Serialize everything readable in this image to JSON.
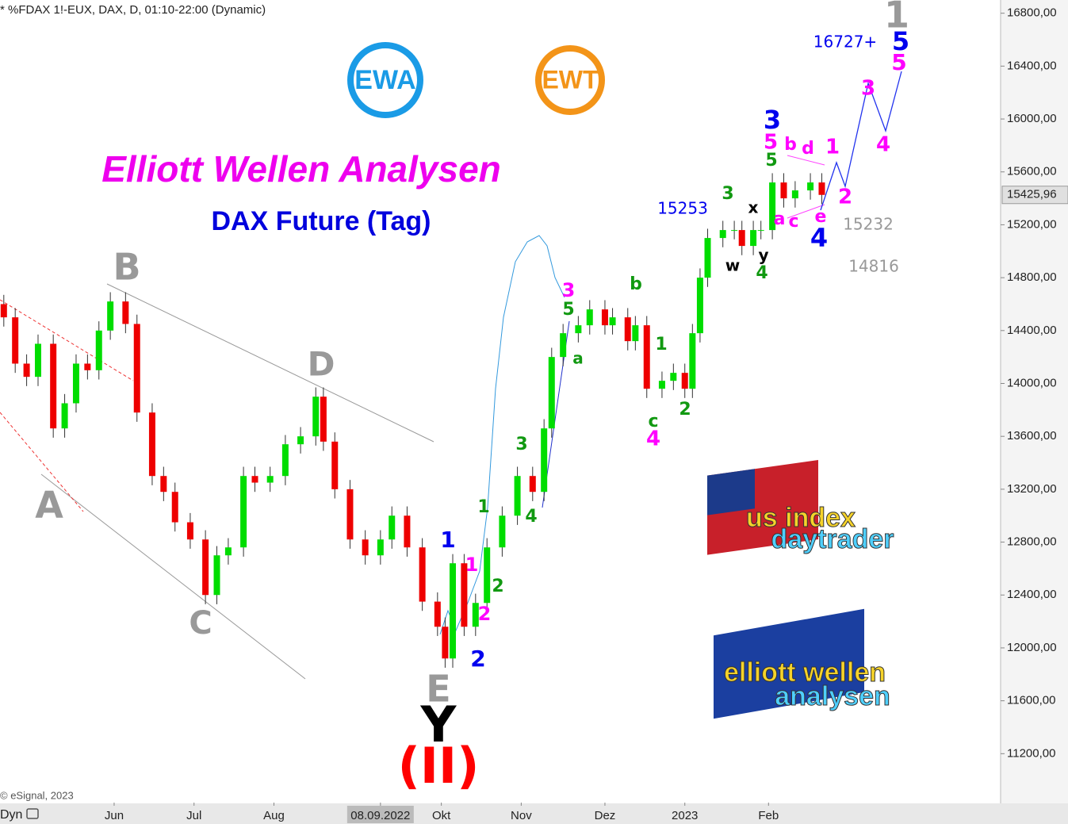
{
  "chart_data": {
    "type": "candlestick",
    "header": "* %FDAX 1!-EUX, DAX, D, 01:10-22:00 (Dynamic)",
    "title": "Elliott Wellen Analysen",
    "subtitle": "DAX Future (Tag)",
    "copyright": "© eSignal, 2023",
    "x_axis_mode": "Dyn",
    "logos": [
      "EWA",
      "EWT"
    ],
    "brand_us": [
      "us index",
      "daytrader"
    ],
    "brand_ewa": [
      "elliott wellen",
      "analysen"
    ],
    "xlim": [
      0,
      263
    ],
    "ylim": [
      10830,
      16900
    ],
    "xticks": [
      {
        "value": 30,
        "label": "Jun"
      },
      {
        "value": 51,
        "label": "Jul"
      },
      {
        "value": 72,
        "label": "Aug"
      },
      {
        "value": 100,
        "label": "08.09.2022"
      },
      {
        "value": 116,
        "label": "Okt"
      },
      {
        "value": 137,
        "label": "Nov"
      },
      {
        "value": 159,
        "label": "Dez"
      },
      {
        "value": 180,
        "label": "2023"
      },
      {
        "value": 202,
        "label": "Feb"
      }
    ],
    "yticks": [
      {
        "value": 11200,
        "label": "11200,00"
      },
      {
        "value": 11600,
        "label": "11600,00"
      },
      {
        "value": 12000,
        "label": "12000,00"
      },
      {
        "value": 12400,
        "label": "12400,00"
      },
      {
        "value": 12800,
        "label": "12800,00"
      },
      {
        "value": 13200,
        "label": "13200,00"
      },
      {
        "value": 13600,
        "label": "13600,00"
      },
      {
        "value": 14000,
        "label": "14000,00"
      },
      {
        "value": 14400,
        "label": "14400,00"
      },
      {
        "value": 14800,
        "label": "14800,00"
      },
      {
        "value": 15200,
        "label": "15200,00"
      },
      {
        "value": 15600,
        "label": "15600,00"
      },
      {
        "value": 16000,
        "label": "16000,00"
      },
      {
        "value": 16400,
        "label": "16400,00"
      },
      {
        "value": 16800,
        "label": "16800,00"
      }
    ],
    "last_price": {
      "value": 15425.96,
      "label": "15425,96"
    },
    "up_color": "#00dd00",
    "down_color": "#ee0000",
    "x": [
      1,
      4,
      7,
      10,
      14,
      17,
      20,
      23,
      26,
      29,
      33,
      36,
      40,
      43,
      46,
      50,
      54,
      57,
      60,
      64,
      67,
      71,
      75,
      79,
      83,
      85,
      88,
      92,
      96,
      100,
      103,
      107,
      111,
      115,
      117,
      119,
      122,
      125,
      128,
      132,
      136,
      140,
      143,
      145,
      148,
      152,
      155,
      159,
      161,
      165,
      167,
      170,
      174,
      177,
      180,
      182,
      184,
      186,
      190,
      193,
      195,
      198,
      200,
      203,
      206,
      209,
      213,
      216
    ],
    "open": [
      14600,
      14500,
      14150,
      14050,
      14300,
      13660,
      13850,
      14150,
      14100,
      14400,
      14620,
      14450,
      13780,
      13300,
      13180,
      12950,
      12820,
      12400,
      12700,
      12760,
      13300,
      13250,
      13300,
      13540,
      13600,
      13900,
      13560,
      13200,
      12820,
      12700,
      12820,
      13000,
      12760,
      12350,
      12160,
      11920,
      12640,
      12160,
      12340,
      12760,
      13000,
      13300,
      13180,
      13660,
      14200,
      14380,
      14440,
      14560,
      14440,
      14500,
      14320,
      14440,
      13960,
      14020,
      14080,
      13960,
      14380,
      14800,
      15100,
      15160,
      15160,
      15040,
      15160,
      15160,
      15520,
      15400,
      15460,
      15520
    ],
    "high": [
      14670,
      14570,
      14220,
      14370,
      14370,
      13920,
      14220,
      14220,
      14470,
      14690,
      14690,
      14520,
      13850,
      13370,
      13250,
      13020,
      12890,
      12770,
      12830,
      13370,
      13370,
      13370,
      13610,
      13670,
      13970,
      13970,
      13630,
      13270,
      12890,
      12890,
      13070,
      13070,
      12830,
      12420,
      12230,
      12710,
      12710,
      12410,
      12830,
      13070,
      13370,
      13370,
      13730,
      14270,
      14450,
      14510,
      14630,
      14630,
      14570,
      14570,
      14510,
      14510,
      14090,
      14150,
      14150,
      14450,
      14870,
      15170,
      15230,
      15230,
      15230,
      15230,
      15230,
      15590,
      15590,
      15530,
      15590,
      15590
    ],
    "low": [
      14430,
      14080,
      13980,
      13980,
      13590,
      13590,
      13780,
      14030,
      14030,
      14330,
      14380,
      13710,
      13230,
      13110,
      12880,
      12750,
      12330,
      12330,
      12630,
      12690,
      13180,
      13180,
      13230,
      13470,
      13530,
      13490,
      13130,
      12750,
      12630,
      12630,
      12750,
      12690,
      12280,
      12090,
      11850,
      11850,
      12090,
      12090,
      12270,
      12690,
      12930,
      13110,
      13110,
      13590,
      14130,
      14310,
      14370,
      14370,
      14370,
      14250,
      14250,
      13890,
      13890,
      13950,
      13890,
      13890,
      14310,
      14730,
      15030,
      15090,
      14970,
      14970,
      15090,
      15090,
      15330,
      15330,
      15390,
      15356
    ],
    "close": [
      14500,
      14150,
      14050,
      14300,
      13660,
      13850,
      14150,
      14100,
      14400,
      14620,
      14450,
      13780,
      13300,
      13180,
      12950,
      12820,
      12400,
      12700,
      12760,
      13300,
      13250,
      13300,
      13540,
      13600,
      13900,
      13560,
      13200,
      12820,
      12700,
      12820,
      13000,
      12760,
      12350,
      12160,
      11920,
      12640,
      12160,
      12340,
      12760,
      13000,
      13300,
      13180,
      13660,
      14200,
      14380,
      14440,
      14560,
      14440,
      14500,
      14320,
      14440,
      13960,
      14020,
      14080,
      13960,
      14380,
      14800,
      15100,
      15160,
      15160,
      15040,
      15160,
      15160,
      15520,
      15400,
      15460,
      15520,
      15426
    ],
    "annotations": [
      {
        "text": "A",
        "color": "#999999"
      },
      {
        "text": "B",
        "color": "#999999"
      },
      {
        "text": "C",
        "color": "#999999"
      },
      {
        "text": "D",
        "color": "#999999"
      },
      {
        "text": "E",
        "color": "#999999"
      },
      {
        "text": "Y",
        "color": "#000000"
      },
      {
        "text": "(II)",
        "color": "#ff0000"
      },
      {
        "text": "1",
        "color": "#0000ee"
      },
      {
        "text": "1",
        "color": "#ff00ff"
      },
      {
        "text": "1",
        "color": "#119911"
      },
      {
        "text": "2",
        "color": "#119911"
      },
      {
        "text": "2",
        "color": "#ff00ff"
      },
      {
        "text": "2",
        "color": "#0000ee"
      },
      {
        "text": "3",
        "color": "#119911"
      },
      {
        "text": "4",
        "color": "#119911"
      },
      {
        "text": "3",
        "color": "#ff00ff"
      },
      {
        "text": "5",
        "color": "#119911"
      },
      {
        "text": "a",
        "color": "#119911"
      },
      {
        "text": "b",
        "color": "#119911"
      },
      {
        "text": "1",
        "color": "#119911"
      },
      {
        "text": "2",
        "color": "#119911"
      },
      {
        "text": "c",
        "color": "#119911"
      },
      {
        "text": "4",
        "color": "#ff00ff"
      },
      {
        "text": "3",
        "color": "#119911"
      },
      {
        "text": "w",
        "color": "#000000"
      },
      {
        "text": "x",
        "color": "#000000"
      },
      {
        "text": "y",
        "color": "#000000"
      },
      {
        "text": "4",
        "color": "#119911"
      },
      {
        "text": "3",
        "color": "#0000ee"
      },
      {
        "text": "5",
        "color": "#ff00ff"
      },
      {
        "text": "5",
        "color": "#119911"
      },
      {
        "text": "b",
        "color": "#ff00ff"
      },
      {
        "text": "d",
        "color": "#ff00ff"
      },
      {
        "text": "a",
        "color": "#ff00ff"
      },
      {
        "text": "c",
        "color": "#ff00ff"
      },
      {
        "text": "e",
        "color": "#ff00ff"
      },
      {
        "text": "4",
        "color": "#0000ee"
      },
      {
        "text": "1",
        "color": "#ff00ff"
      },
      {
        "text": "2",
        "color": "#ff00ff"
      },
      {
        "text": "3",
        "color": "#ff00ff"
      },
      {
        "text": "4",
        "color": "#ff00ff"
      },
      {
        "text": "1",
        "color": "#999999"
      },
      {
        "text": "5",
        "color": "#0000ee"
      },
      {
        "text": "5",
        "color": "#ff00ff"
      },
      {
        "text": "16727+",
        "color": "#0000ee"
      },
      {
        "text": "15253",
        "color": "#0000ee"
      },
      {
        "text": "15232",
        "color": "#999999"
      },
      {
        "text": "14816",
        "color": "#999999"
      }
    ]
  }
}
